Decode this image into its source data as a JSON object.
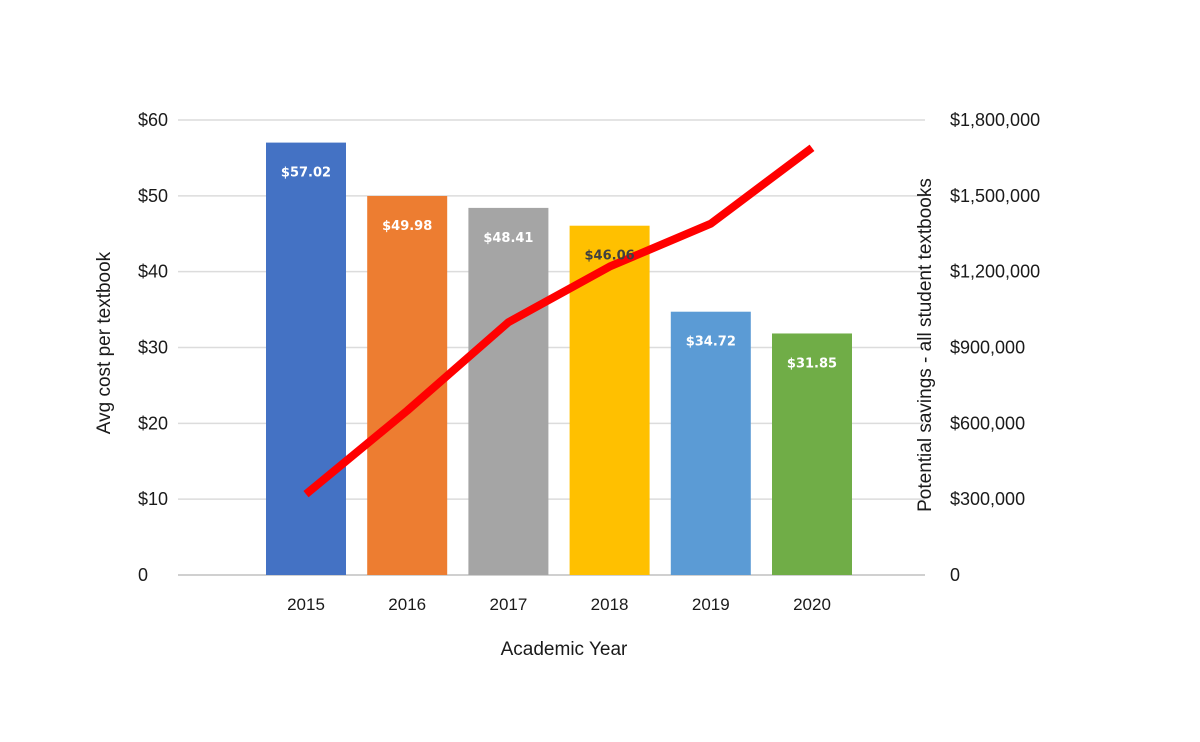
{
  "chart_data": {
    "type": "bar",
    "categories": [
      "2015",
      "2016",
      "2017",
      "2018",
      "2019",
      "2020"
    ],
    "xlabel": "Academic Year",
    "ylabel": "Avg cost per textbook",
    "y2label": "Potential savings - all student textbooks",
    "ylim": [
      0,
      60
    ],
    "y2lim": [
      0,
      1800000
    ],
    "yticks": [
      "0",
      "$10",
      "$20",
      "$30",
      "$40",
      "$50",
      "$60"
    ],
    "y2ticks": [
      "0",
      "$300,000",
      "$600,000",
      "$900,000",
      "$1,200,000",
      "$1,500,000",
      "$1,800,000"
    ],
    "grid": true,
    "legend": "none",
    "series": [
      {
        "type": "bar",
        "axis": "left",
        "values": [
          57.02,
          49.98,
          48.41,
          46.06,
          34.72,
          31.85
        ],
        "labels": [
          "$57.02",
          "$49.98",
          "$48.41",
          "$46.06",
          "$34.72",
          "$31.85"
        ],
        "colors": [
          "#4472C4",
          "#ED7D31",
          "#A5A5A5",
          "#FFC000",
          "#5B9BD5",
          "#70AD47"
        ],
        "label_colors": [
          "#ffffff",
          "#ffffff",
          "#ffffff",
          "#404040",
          "#ffffff",
          "#ffffff"
        ]
      },
      {
        "type": "line",
        "axis": "right",
        "values": [
          320000,
          650000,
          1000000,
          1220000,
          1390000,
          1690000
        ],
        "color": "#FF0000"
      }
    ]
  }
}
